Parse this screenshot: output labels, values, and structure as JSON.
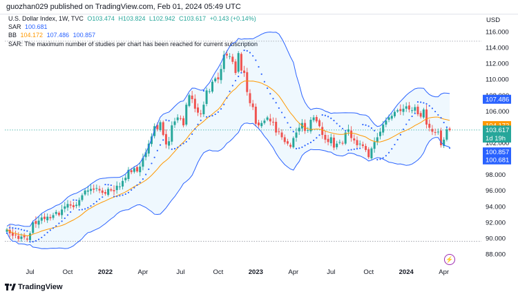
{
  "header": {
    "text": "guozhan029 published on TradingView.com, Feb 01, 2024 05:49 UTC"
  },
  "legend": {
    "symbol": "U.S. Dollar Index, 1W, TVC",
    "open": "O103.474",
    "high": "H103.824",
    "low": "L102.942",
    "close": "C103.617",
    "change": "+0.143 (+0.14%)",
    "sar_label": "SAR",
    "sar_value": "100.681",
    "bb_label": "BB",
    "bb_basis": "104.172",
    "bb_upper": "107.486",
    "bb_lower": "100.857",
    "notice": "SAR: The maximum number of studies per chart has been reached for current subscription"
  },
  "axis": {
    "unit": "USD"
  },
  "brand": {
    "name": "TradingView"
  },
  "colors": {
    "up": "#26a69a",
    "down": "#ef5350",
    "basis": "#ff9800",
    "band": "#2962ff",
    "bandfill": "#2196f3",
    "sar": "#2962ff"
  },
  "price_tags": [
    {
      "label": "107.486",
      "color": "#2962ff",
      "value": 107.486
    },
    {
      "label": "104.172",
      "color": "#ff9800",
      "value": 104.172
    },
    {
      "label": "103.617",
      "color": "#26a69a",
      "value": 103.617
    },
    {
      "label": "1d 19h",
      "color": "#26a69a",
      "value": 102.6
    },
    {
      "label": "100.857",
      "color": "#2962ff",
      "value": 100.857
    },
    {
      "label": "100.681",
      "color": "#2962ff",
      "value": 99.85
    }
  ],
  "chart_data": {
    "type": "candlestick",
    "title": "U.S. Dollar Index, 1W, TVC",
    "ylabel": "USD",
    "ylim": [
      87,
      117
    ],
    "y_ticks": [
      88,
      90,
      92,
      94,
      96,
      98,
      100,
      102,
      104,
      106,
      108,
      110,
      112,
      114,
      116
    ],
    "y_tick_labels": [
      "88.000",
      "90.000",
      "92.000",
      "94.000",
      "96.000",
      "98.000",
      "100.000",
      "102.000",
      "104.000",
      "106.000",
      "108.000",
      "110.000",
      "112.000",
      "114.000",
      "116.000"
    ],
    "x_ticks": [
      {
        "label": "Jul",
        "week": 8,
        "bold": false
      },
      {
        "label": "Oct",
        "week": 21,
        "bold": false
      },
      {
        "label": "2022",
        "week": 34,
        "bold": true
      },
      {
        "label": "Apr",
        "week": 47,
        "bold": false
      },
      {
        "label": "Jul",
        "week": 60,
        "bold": false
      },
      {
        "label": "Oct",
        "week": 73,
        "bold": false
      },
      {
        "label": "2023",
        "week": 86,
        "bold": true
      },
      {
        "label": "Apr",
        "week": 99,
        "bold": false
      },
      {
        "label": "Jul",
        "week": 112,
        "bold": false
      },
      {
        "label": "Oct",
        "week": 125,
        "bold": false
      },
      {
        "label": "2024",
        "week": 138,
        "bold": true
      },
      {
        "label": "Apr",
        "week": 151,
        "bold": false
      }
    ],
    "horizontal_lines": [
      114.8,
      89.6
    ],
    "candles_close": [
      91.1,
      90.6,
      90.3,
      90.4,
      89.9,
      90.2,
      90.1,
      89.8,
      90.6,
      92.0,
      91.8,
      92.2,
      92.6,
      92.4,
      92.7,
      92.5,
      92.9,
      93.3,
      92.9,
      93.6,
      94.0,
      94.3,
      94.1,
      93.9,
      94.2,
      94.8,
      95.4,
      96.0,
      96.0,
      96.2,
      96.1,
      96.3,
      96.0,
      95.7,
      95.6,
      96.2,
      96.0,
      95.9,
      96.6,
      96.5,
      97.2,
      97.6,
      98.6,
      98.3,
      98.8,
      98.4,
      99.0,
      100.1,
      100.8,
      101.9,
      102.8,
      104.1,
      103.7,
      104.6,
      103.0,
      101.8,
      102.2,
      104.2,
      104.7,
      105.2,
      105.1,
      104.2,
      106.8,
      108.0,
      107.5,
      106.3,
      105.8,
      105.6,
      106.8,
      108.6,
      108.5,
      109.7,
      110.1,
      110.0,
      111.3,
      113.1,
      113.0,
      112.9,
      112.2,
      110.8,
      113.3,
      111.1,
      110.8,
      108.4,
      107.0,
      106.5,
      104.4,
      104.2,
      104.5,
      104.8,
      105.2,
      104.7,
      104.6,
      103.3,
      103.4,
      102.7,
      102.1,
      101.9,
      101.5,
      102.6,
      103.3,
      103.9,
      104.5,
      103.5,
      103.6,
      104.9,
      105.2,
      104.7,
      104.1,
      103.0,
      102.4,
      102.1,
      102.7,
      101.4,
      101.9,
      102.1,
      101.9,
      103.3,
      103.7,
      102.6,
      102.3,
      101.7,
      101.9,
      101.6,
      101.1,
      100.2,
      101.3,
      102.1,
      102.7,
      103.4,
      104.3,
      104.8,
      105.2,
      105.4,
      105.9,
      106.1,
      106.0,
      106.3,
      106.6,
      106.2,
      106.1,
      106.5,
      105.6,
      105.3,
      106.2,
      104.3,
      103.9,
      103.4,
      103.3,
      103.4,
      101.7,
      102.4,
      103.7,
      103.6
    ],
    "series": [
      {
        "name": "BB",
        "role": "basis"
      },
      {
        "name": "BB",
        "role": "upper"
      },
      {
        "name": "BB",
        "role": "lower"
      },
      {
        "name": "SAR",
        "role": "parabolic"
      }
    ],
    "grid": false
  }
}
